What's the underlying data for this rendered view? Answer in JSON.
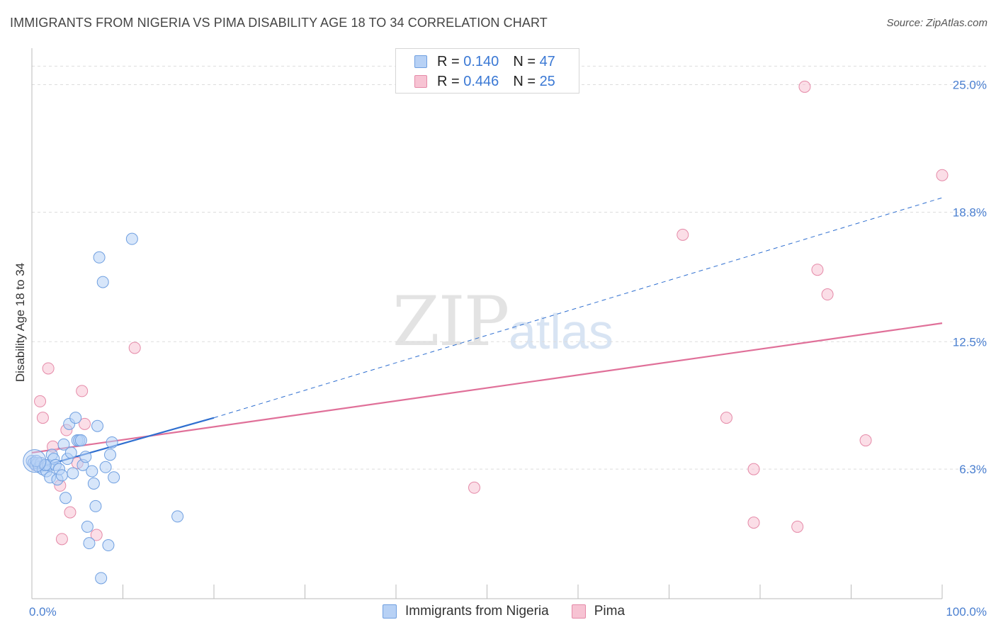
{
  "title": "IMMIGRANTS FROM NIGERIA VS PIMA DISABILITY AGE 18 TO 34 CORRELATION CHART",
  "source": "Source: ZipAtlas.com",
  "watermark": {
    "zip": "ZIP",
    "atlas": "atlas"
  },
  "legend": {
    "series1": {
      "r_label": "R =",
      "r_value": "0.140",
      "n_label": "N =",
      "n_value": "47"
    },
    "series2": {
      "r_label": "R =",
      "r_value": "0.446",
      "n_label": "N =",
      "n_value": "25"
    }
  },
  "bottom_legend": {
    "series1": "Immigrants from Nigeria",
    "series2": "Pima"
  },
  "colors": {
    "blue_fill": "#b7d1f5",
    "blue_stroke": "#6f9fe0",
    "blue_line": "#2f6fd0",
    "pink_fill": "#f7c3d3",
    "pink_stroke": "#e58aa8",
    "pink_line": "#e07099",
    "tick_text": "#4a7fd0",
    "grid": "#dddddd"
  },
  "chart_data": {
    "type": "scatter",
    "title": "IMMIGRANTS FROM NIGERIA VS PIMA DISABILITY AGE 18 TO 34 CORRELATION CHART",
    "ylabel": "Disability Age 18 to 34",
    "xlabel": "",
    "x_tick_labels": [
      "0.0%",
      "100.0%"
    ],
    "y_tick_labels": [
      "6.3%",
      "12.5%",
      "18.8%",
      "25.0%"
    ],
    "y_ticks": [
      6.3,
      12.5,
      18.8,
      25.0
    ],
    "xlim": [
      0,
      100
    ],
    "ylim": [
      0,
      26.5
    ],
    "grid": "horizontal dashed",
    "series": [
      {
        "name": "Immigrants from Nigeria",
        "points": [
          [
            0.0,
            6.7
          ],
          [
            0.2,
            6.6
          ],
          [
            0.4,
            6.5
          ],
          [
            0.6,
            6.6
          ],
          [
            0.8,
            6.4
          ],
          [
            1.0,
            6.6
          ],
          [
            1.2,
            6.3
          ],
          [
            1.4,
            6.5
          ],
          [
            1.6,
            6.2
          ],
          [
            1.8,
            6.5
          ],
          [
            2.0,
            5.9
          ],
          [
            2.2,
            7.0
          ],
          [
            2.4,
            6.8
          ],
          [
            2.6,
            6.5
          ],
          [
            2.8,
            5.8
          ],
          [
            3.0,
            6.3
          ],
          [
            3.3,
            6.0
          ],
          [
            3.5,
            7.5
          ],
          [
            3.7,
            4.9
          ],
          [
            3.9,
            6.8
          ],
          [
            4.1,
            8.5
          ],
          [
            4.3,
            7.1
          ],
          [
            4.5,
            6.1
          ],
          [
            4.8,
            8.8
          ],
          [
            5.0,
            7.7
          ],
          [
            5.2,
            7.7
          ],
          [
            5.4,
            7.7
          ],
          [
            5.6,
            6.5
          ],
          [
            5.9,
            6.9
          ],
          [
            6.1,
            3.5
          ],
          [
            6.3,
            2.7
          ],
          [
            6.6,
            6.2
          ],
          [
            6.8,
            5.6
          ],
          [
            7.0,
            4.5
          ],
          [
            7.2,
            8.4
          ],
          [
            7.4,
            16.6
          ],
          [
            7.6,
            1.0
          ],
          [
            7.8,
            15.4
          ],
          [
            8.1,
            6.4
          ],
          [
            8.4,
            2.6
          ],
          [
            8.6,
            7.0
          ],
          [
            8.8,
            7.6
          ],
          [
            9.0,
            5.9
          ],
          [
            11.0,
            17.5
          ],
          [
            16.0,
            4.0
          ],
          [
            0.5,
            6.7
          ],
          [
            1.5,
            6.5
          ]
        ],
        "trend": {
          "x": [
            0,
            20
          ],
          "y": [
            6.3,
            8.8
          ]
        },
        "trend_extension": {
          "x": [
            20,
            100
          ],
          "y": [
            8.8,
            19.5
          ]
        }
      },
      {
        "name": "Pima",
        "points": [
          [
            0.4,
            6.5
          ],
          [
            0.9,
            9.6
          ],
          [
            1.2,
            8.8
          ],
          [
            1.8,
            11.2
          ],
          [
            2.3,
            7.4
          ],
          [
            3.1,
            5.5
          ],
          [
            3.3,
            2.9
          ],
          [
            3.8,
            8.2
          ],
          [
            4.2,
            4.2
          ],
          [
            5.0,
            6.6
          ],
          [
            5.5,
            10.1
          ],
          [
            5.8,
            8.5
          ],
          [
            7.1,
            3.1
          ],
          [
            11.3,
            12.2
          ],
          [
            48.6,
            5.4
          ],
          [
            71.5,
            17.7
          ],
          [
            76.3,
            8.8
          ],
          [
            79.3,
            6.3
          ],
          [
            79.3,
            3.7
          ],
          [
            84.1,
            3.5
          ],
          [
            84.9,
            24.9
          ],
          [
            86.3,
            16.0
          ],
          [
            87.4,
            14.8
          ],
          [
            91.6,
            7.7
          ],
          [
            100.0,
            20.6
          ]
        ],
        "trend": {
          "x": [
            0,
            100
          ],
          "y": [
            7.1,
            13.4
          ]
        }
      }
    ]
  }
}
